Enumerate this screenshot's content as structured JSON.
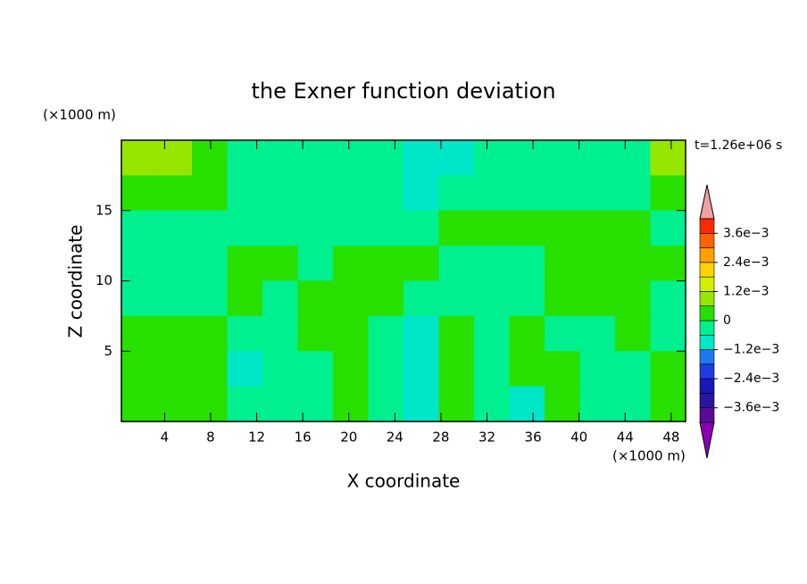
{
  "chart_data": {
    "type": "contour",
    "title": "the Exner function deviation",
    "xlabel": "X coordinate",
    "ylabel": "Z coordinate",
    "x_unit": "(×1000 m)",
    "y_unit": "(×1000 m)",
    "annotation": "t=1.26e+06 s",
    "xlim": [
      0.25,
      49.25
    ],
    "ylim": [
      0,
      20
    ],
    "xticks": [
      4,
      8,
      12,
      16,
      20,
      24,
      28,
      32,
      36,
      40,
      44,
      48
    ],
    "yticks": [
      5,
      10,
      15
    ],
    "levels": [
      -0.0042,
      -0.0036,
      -0.003,
      -0.0024,
      -0.0018,
      -0.0012,
      -0.0006,
      0,
      0.0006,
      0.0012,
      0.0018,
      0.0024,
      0.003,
      0.0036,
      0.0042
    ],
    "colors": [
      "#5a0a96",
      "#2a14a0",
      "#1818b8",
      "#1e3ce0",
      "#1e78f0",
      "#00e6c8",
      "#00f090",
      "#28e000",
      "#96e600",
      "#d2f000",
      "#ffd200",
      "#ffa000",
      "#ff6400",
      "#ff2800"
    ],
    "colorbar_ticks": [
      {
        "value": 0.0036,
        "label": "3.6e−3"
      },
      {
        "value": 0.0024,
        "label": "2.4e−3"
      },
      {
        "value": 0.0012,
        "label": "1.2e−3"
      },
      0,
      {
        "value": -0.0012,
        "label": "−1.2e−3"
      },
      {
        "value": -0.0024,
        "label": "−2.4e−3"
      },
      {
        "value": -0.0036,
        "label": "−3.6e−3"
      }
    ],
    "values": [
      [
        0.0009,
        0.0009,
        0.0003,
        -0.0003,
        -0.0003,
        -0.0003,
        -0.0003,
        -0.0003,
        -0.0009,
        -0.0009,
        -0.0003,
        -0.0003,
        -0.0003,
        -0.0003,
        -0.0003,
        0.0009
      ],
      [
        0.0003,
        0.0003,
        0.0003,
        -0.0003,
        -0.0003,
        -0.0003,
        -0.0003,
        -0.0003,
        -0.0009,
        -0.0003,
        -0.0003,
        -0.0003,
        -0.0003,
        -0.0003,
        -0.0003,
        0.0003
      ],
      [
        -0.0003,
        -0.0003,
        -0.0003,
        -0.0003,
        -0.0003,
        -0.0003,
        -0.0003,
        -0.0003,
        -0.0003,
        0.0003,
        0.0003,
        0.0003,
        0.0003,
        0.0003,
        0.0003,
        -0.0003
      ],
      [
        -0.0003,
        -0.0003,
        -0.0003,
        0.0003,
        0.0003,
        -0.0003,
        0.0003,
        0.0003,
        0.0003,
        -0.0003,
        -0.0003,
        -0.0003,
        0.0003,
        0.0003,
        0.0003,
        0.0003
      ],
      [
        -0.0003,
        -0.0003,
        -0.0003,
        0.0003,
        -0.0003,
        0.0003,
        0.0003,
        0.0003,
        -0.0003,
        -0.0003,
        -0.0003,
        -0.0003,
        0.0003,
        0.0003,
        0.0003,
        -0.0003
      ],
      [
        0.0003,
        0.0003,
        0.0003,
        -0.0003,
        -0.0003,
        0.0003,
        0.0003,
        -0.0003,
        -0.0009,
        0.0003,
        -0.0003,
        0.0003,
        -0.0003,
        -0.0003,
        0.0003,
        -0.0003
      ],
      [
        0.0003,
        0.0003,
        0.0003,
        -0.0009,
        -0.0003,
        -0.0003,
        0.0003,
        -0.0003,
        -0.0009,
        0.0003,
        -0.0003,
        0.0003,
        0.0003,
        -0.0003,
        -0.0003,
        0.0003
      ],
      [
        0.0003,
        0.0003,
        0.0003,
        -0.0003,
        -0.0003,
        -0.0003,
        0.0003,
        -0.0003,
        -0.0009,
        0.0003,
        -0.0003,
        -0.0009,
        0.0003,
        -0.0003,
        -0.0003,
        0.0003
      ]
    ]
  }
}
